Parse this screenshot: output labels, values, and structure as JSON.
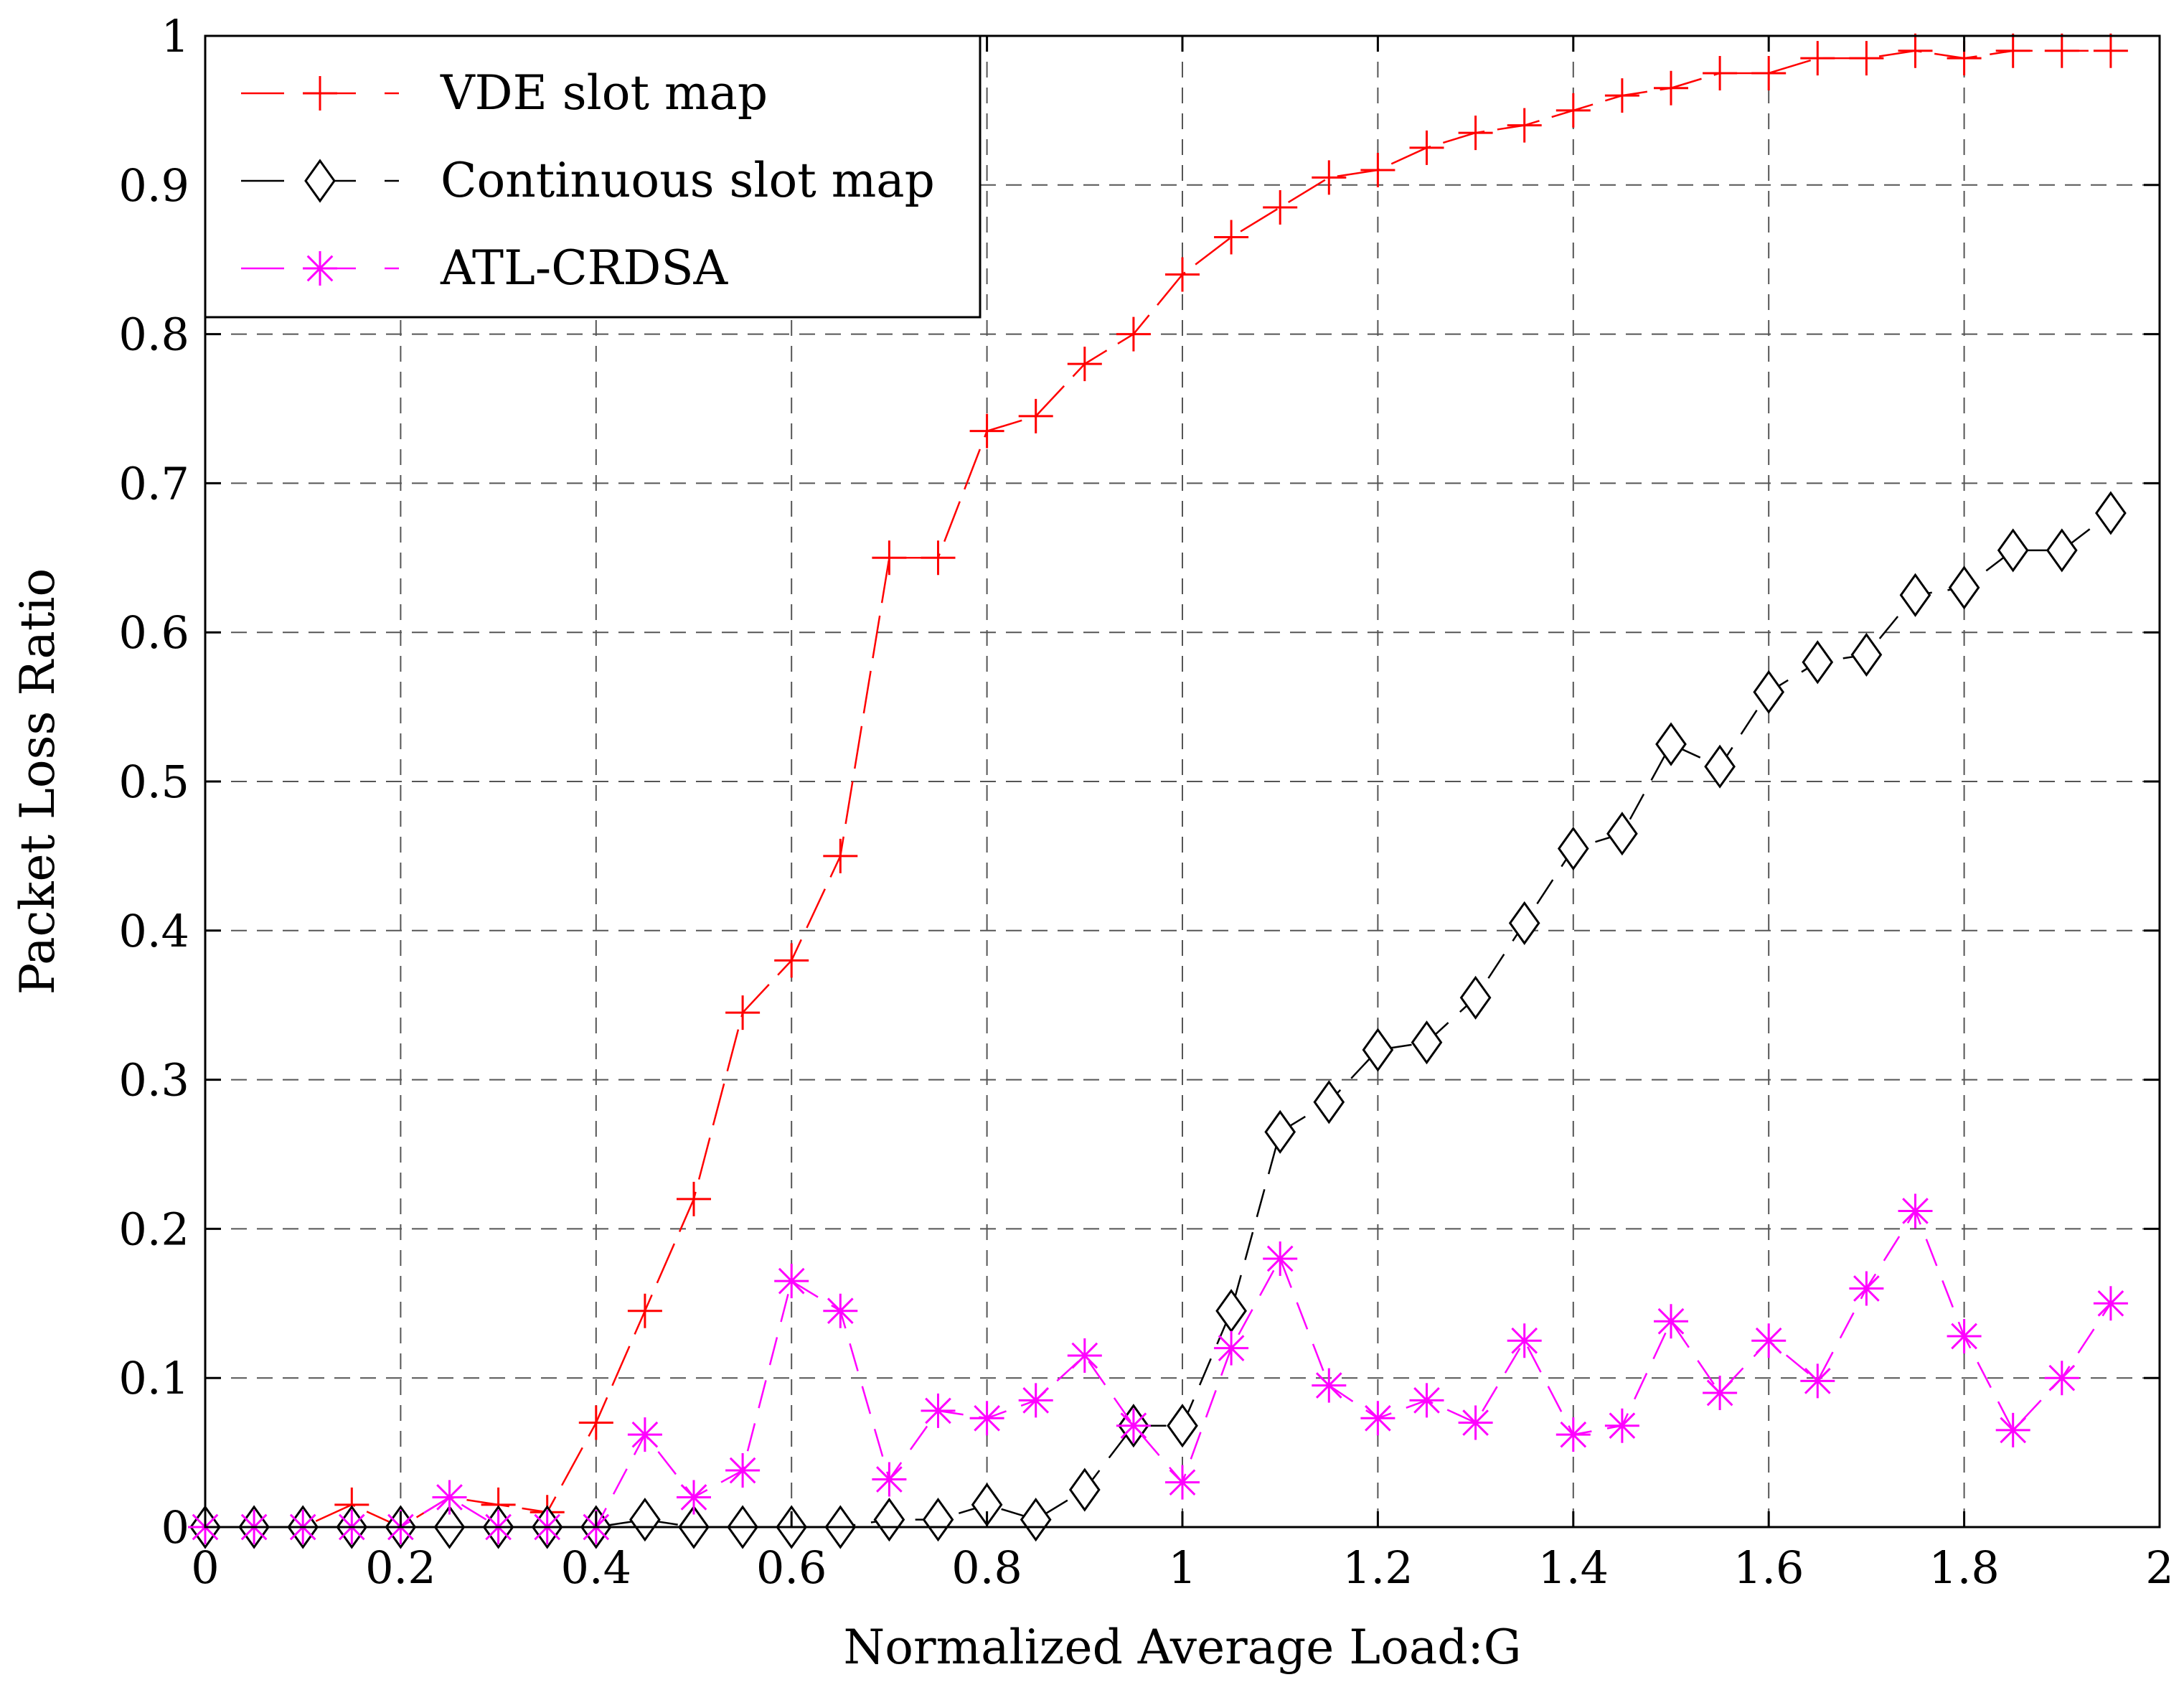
{
  "chart_data": {
    "type": "line",
    "title": "",
    "xlabel": "Normalized Average Load:G",
    "ylabel": "Packet Loss Ratio",
    "xlim": [
      0,
      2
    ],
    "ylim": [
      0,
      1
    ],
    "grid": true,
    "legend_position": "top-left",
    "x_ticks": [
      "0",
      "0.2",
      "0.4",
      "0.6",
      "0.8",
      "1",
      "1.2",
      "1.4",
      "1.6",
      "1.8",
      "2"
    ],
    "y_ticks": [
      "0",
      "0.1",
      "0.2",
      "0.3",
      "0.4",
      "0.5",
      "0.6",
      "0.7",
      "0.8",
      "0.9",
      "1"
    ],
    "x": [
      0.0,
      0.05,
      0.1,
      0.15,
      0.2,
      0.25,
      0.3,
      0.35,
      0.4,
      0.45,
      0.5,
      0.55,
      0.6,
      0.65,
      0.7,
      0.75,
      0.8,
      0.85,
      0.9,
      0.95,
      1.0,
      1.05,
      1.1,
      1.15,
      1.2,
      1.25,
      1.3,
      1.35,
      1.4,
      1.45,
      1.5,
      1.55,
      1.6,
      1.65,
      1.7,
      1.75,
      1.8,
      1.85,
      1.9,
      1.95
    ],
    "series": [
      {
        "name": "VDE slot map",
        "color": "#ff0000",
        "marker": "plus",
        "values": [
          0.0,
          0.0,
          0.0,
          0.015,
          0.0,
          0.02,
          0.015,
          0.01,
          0.07,
          0.145,
          0.22,
          0.345,
          0.38,
          0.45,
          0.65,
          0.65,
          0.735,
          0.745,
          0.78,
          0.8,
          0.84,
          0.865,
          0.885,
          0.905,
          0.91,
          0.925,
          0.935,
          0.94,
          0.95,
          0.96,
          0.965,
          0.975,
          0.975,
          0.985,
          0.985,
          0.99,
          0.985,
          0.99,
          0.99,
          0.99
        ]
      },
      {
        "name": "Continuous slot map",
        "color": "#000000",
        "marker": "diamond",
        "values": [
          0.0,
          0.0,
          0.0,
          0.0,
          0.0,
          0.0,
          0.0,
          0.0,
          0.0,
          0.005,
          0.0,
          0.0,
          0.0,
          0.0,
          0.005,
          0.005,
          0.015,
          0.005,
          0.025,
          0.068,
          0.068,
          0.145,
          0.265,
          0.285,
          0.32,
          0.325,
          0.355,
          0.405,
          0.455,
          0.465,
          0.525,
          0.51,
          0.56,
          0.58,
          0.585,
          0.625,
          0.63,
          0.655,
          0.655,
          0.68
        ]
      },
      {
        "name": "ATL-CRDSA",
        "color": "#ff00ff",
        "marker": "star",
        "values": [
          0.0,
          0.0,
          0.0,
          0.0,
          0.0,
          0.02,
          0.0,
          0.0,
          0.0,
          0.062,
          0.02,
          0.038,
          0.165,
          0.145,
          0.032,
          0.078,
          0.073,
          0.085,
          0.115,
          0.068,
          0.03,
          0.12,
          0.18,
          0.095,
          0.073,
          0.085,
          0.07,
          0.125,
          0.062,
          0.068,
          0.138,
          0.09,
          0.125,
          0.098,
          0.16,
          0.212,
          0.128,
          0.065,
          0.1,
          0.15
        ]
      }
    ]
  }
}
